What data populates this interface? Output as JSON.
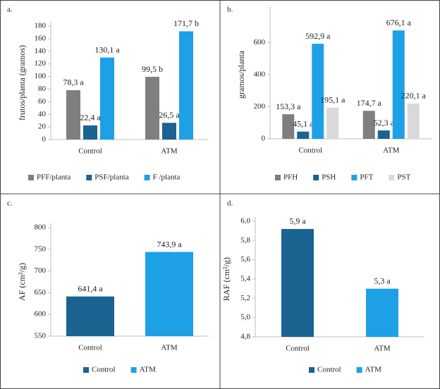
{
  "chart_data": [
    {
      "type": "bar",
      "panel_label": "a.",
      "y_label": "frutos/planta (gramos)",
      "categories": [
        "Control",
        "ATM"
      ],
      "series": [
        {
          "name": "PFF/planta",
          "color": "#7f7f7f",
          "values": [
            78.3,
            99.5
          ],
          "value_labels": [
            "78,3 a",
            "99,5 b"
          ]
        },
        {
          "name": "PSF/planta",
          "color": "#1b6390",
          "values": [
            22.4,
            26.5
          ],
          "value_labels": [
            "22,4 a",
            "26,5 a"
          ]
        },
        {
          "name": "F /planta",
          "color": "#1ea0e6",
          "values": [
            130.1,
            171.7
          ],
          "value_labels": [
            "130,1 a",
            "171,7 b"
          ]
        }
      ],
      "ylim": [
        0,
        180
      ],
      "yticks": [
        0,
        20,
        40,
        60,
        80,
        100,
        120,
        140,
        160,
        180
      ]
    },
    {
      "type": "bar",
      "panel_label": "b.",
      "y_label": "gramos/planta",
      "categories": [
        "Control",
        "ATM"
      ],
      "series": [
        {
          "name": "PFH",
          "color": "#7f7f7f",
          "values": [
            153.3,
            174.7
          ],
          "value_labels": [
            "153,3 a",
            "174,7 a"
          ]
        },
        {
          "name": "PSH",
          "color": "#1b6390",
          "values": [
            45.1,
            52.3
          ],
          "value_labels": [
            "45,1 a",
            "52,3 a"
          ]
        },
        {
          "name": "PFT",
          "color": "#1ea0e6",
          "values": [
            592.9,
            676.1
          ],
          "value_labels": [
            "592,9 a",
            "676,1 a"
          ]
        },
        {
          "name": "PST",
          "color": "#d9d9d9",
          "values": [
            195.1,
            220.1
          ],
          "value_labels": [
            "195,1 a",
            "220,1 a"
          ]
        }
      ],
      "ylim": [
        0,
        800
      ],
      "yticks": [
        0,
        200,
        400,
        600
      ]
    },
    {
      "type": "bar",
      "panel_label": "c.",
      "y_label": "AF (cm²/g)",
      "categories": [
        "Control",
        "ATM"
      ],
      "colors": [
        "#1b6390",
        "#1ea0e6"
      ],
      "values": [
        641.4,
        743.9
      ],
      "value_labels": [
        "641,4 a",
        "743,9 a"
      ],
      "ylim": [
        550,
        800
      ],
      "yticks": [
        550,
        600,
        650,
        700,
        750,
        800
      ]
    },
    {
      "type": "bar",
      "panel_label": "d.",
      "y_label": "RAF (cm²/g)",
      "categories": [
        "Control",
        "ATM"
      ],
      "colors": [
        "#1b6390",
        "#1ea0e6"
      ],
      "values": [
        5.92,
        5.3
      ],
      "value_labels": [
        "5,9 a",
        "5,3 a"
      ],
      "ylim": [
        4.8,
        6.0
      ],
      "yticks": [
        {
          "value": 4.8,
          "label": "4,8"
        },
        {
          "value": 5.0,
          "label": "5,0"
        },
        {
          "value": 5.2,
          "label": "5,2"
        },
        {
          "value": 5.4,
          "label": "5,4"
        },
        {
          "value": 5.6,
          "label": "5,6"
        },
        {
          "value": 5.8,
          "label": "5,8"
        },
        {
          "value": 6.0,
          "label": "6,0"
        }
      ]
    }
  ]
}
